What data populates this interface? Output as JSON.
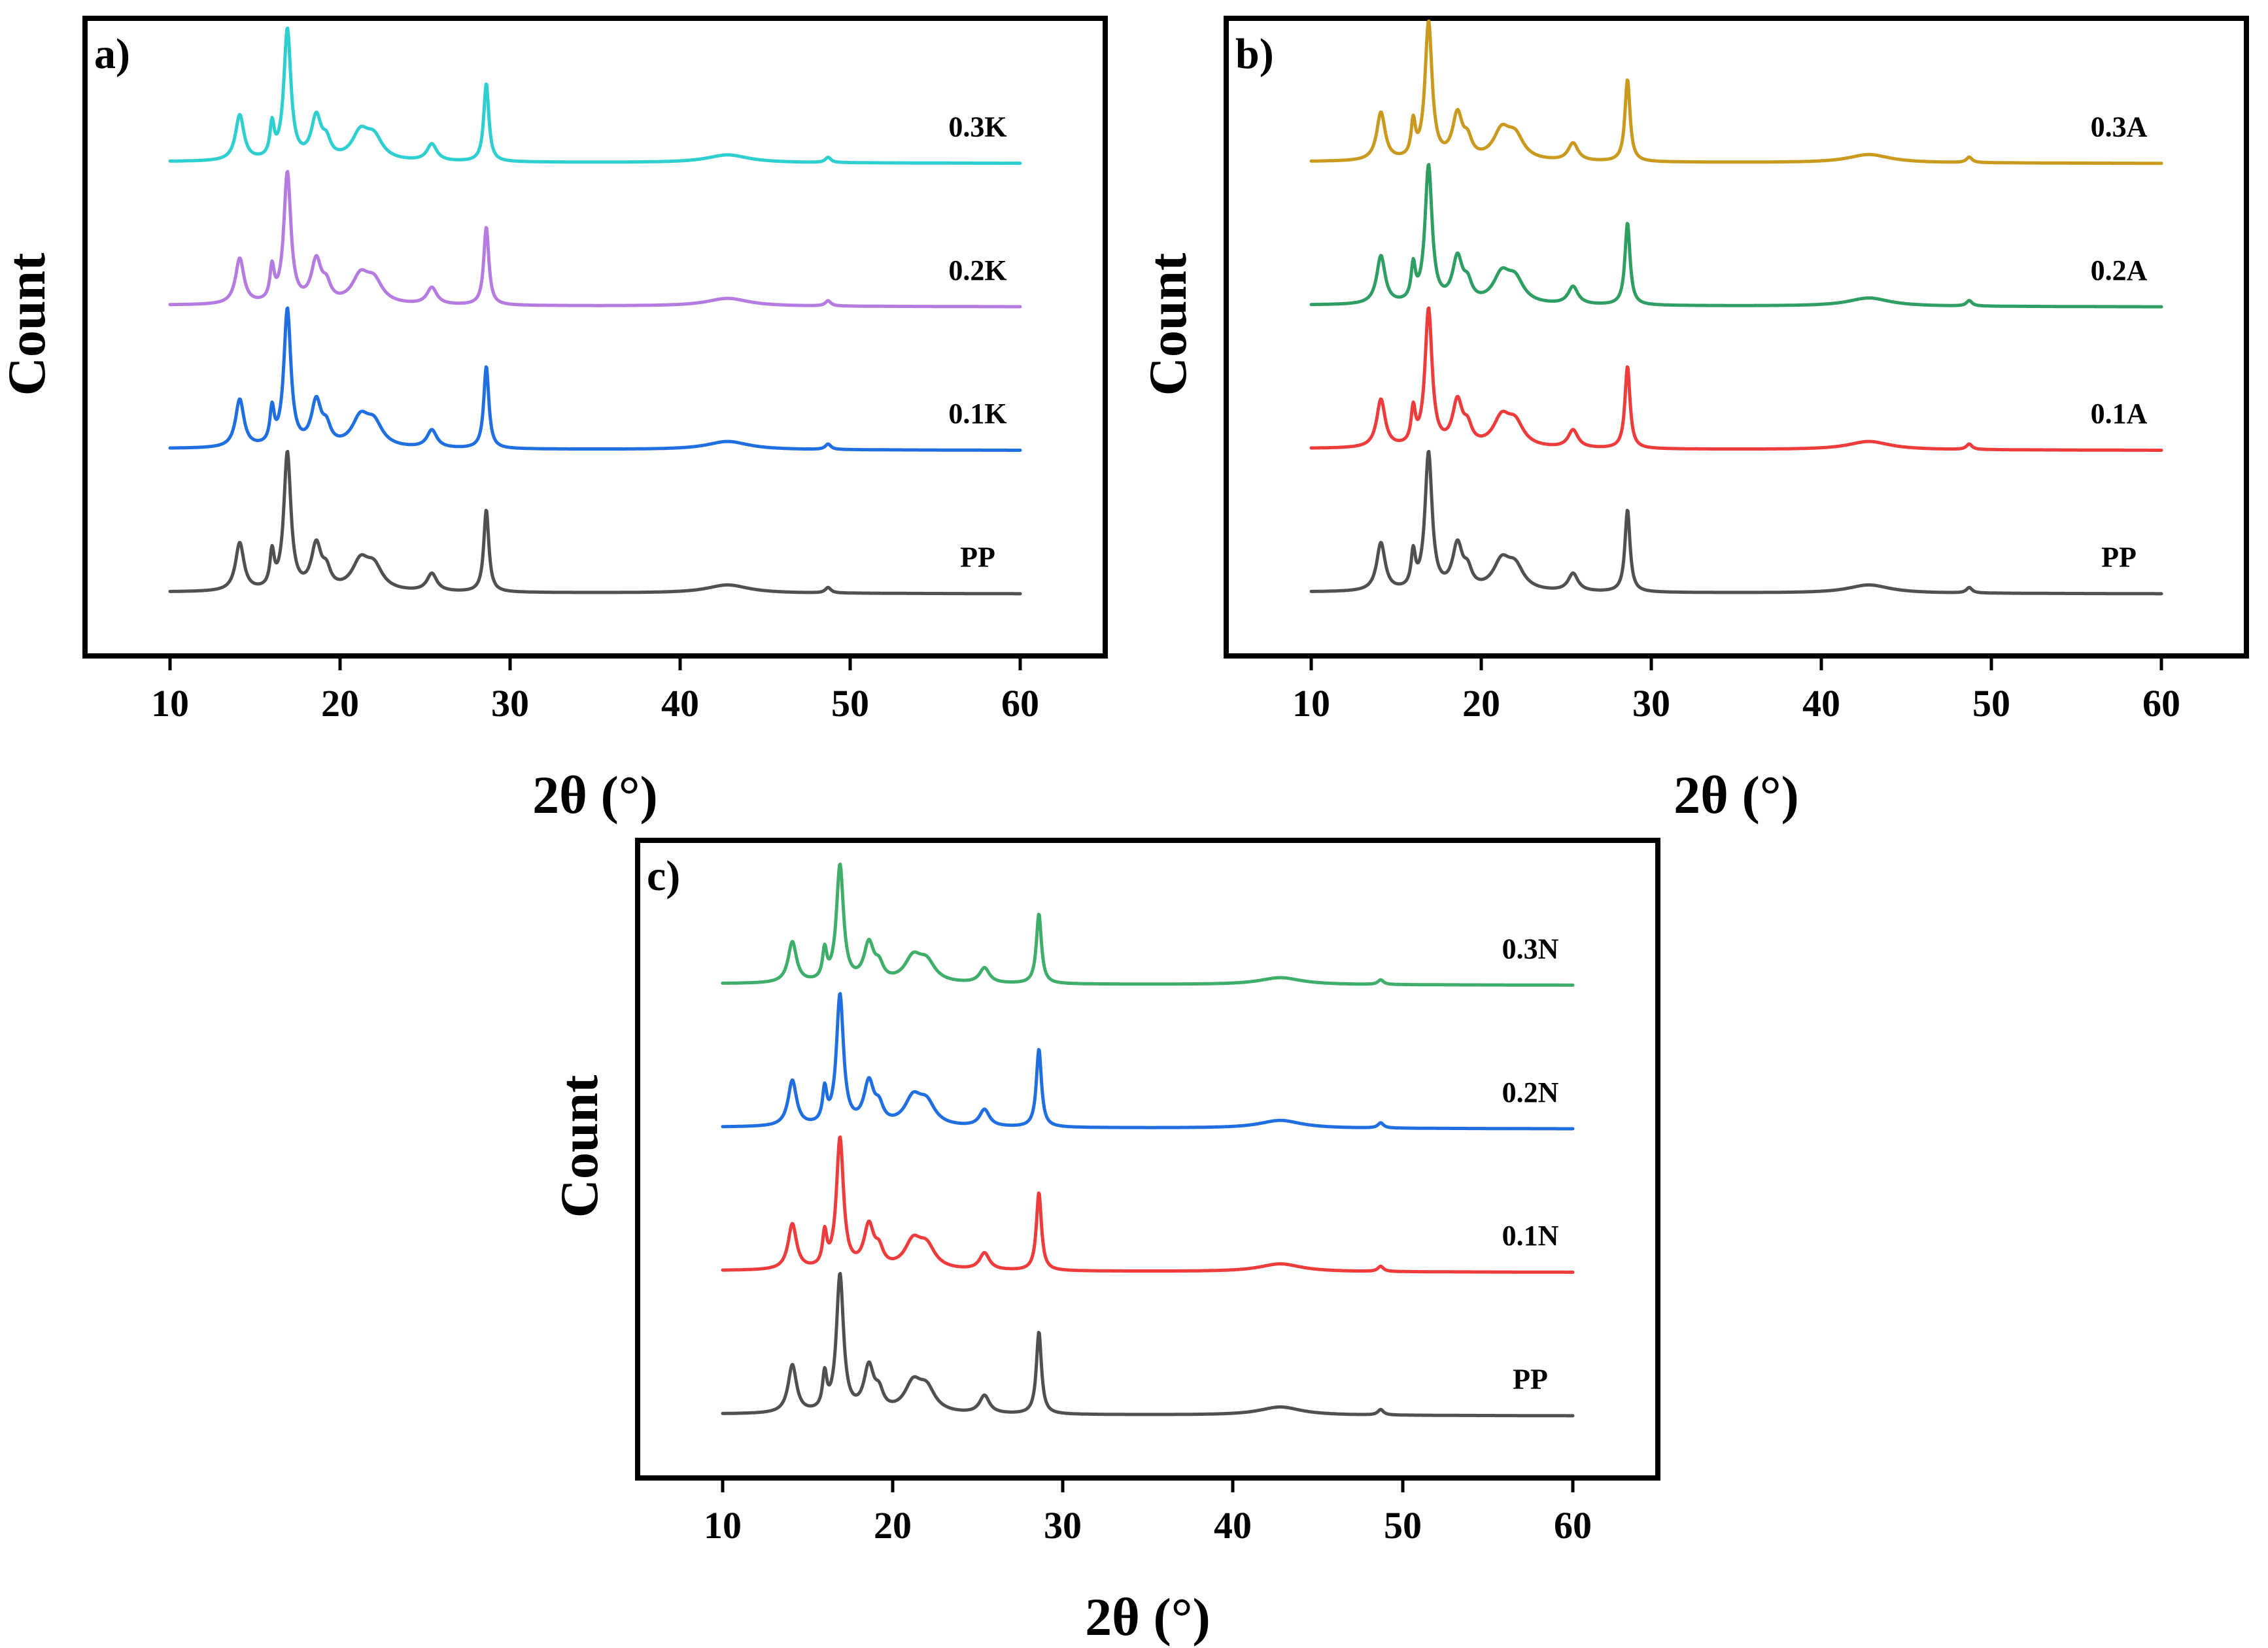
{
  "chart_data": [
    {
      "type": "line",
      "panel_label": "a)",
      "xlabel": "2θ (°)",
      "ylabel": "Count",
      "xlim": [
        5,
        65
      ],
      "xticks": [
        "10",
        "20",
        "30",
        "40",
        "50",
        "60"
      ],
      "peaks": [
        {
          "x": 14.1,
          "h": 0.35,
          "w": 0.3
        },
        {
          "x": 16.0,
          "h": 0.25,
          "w": 0.15
        },
        {
          "x": 16.9,
          "h": 1.0,
          "w": 0.25
        },
        {
          "x": 18.6,
          "h": 0.32,
          "w": 0.35
        },
        {
          "x": 19.2,
          "h": 0.12,
          "w": 0.3
        },
        {
          "x": 21.2,
          "h": 0.2,
          "w": 0.6
        },
        {
          "x": 22.0,
          "h": 0.16,
          "w": 0.6
        },
        {
          "x": 25.4,
          "h": 0.13,
          "w": 0.35
        },
        {
          "x": 28.6,
          "h": 0.6,
          "w": 0.18
        },
        {
          "x": 42.8,
          "h": 0.06,
          "w": 1.5
        },
        {
          "x": 48.7,
          "h": 0.04,
          "w": 0.2
        }
      ],
      "series": [
        {
          "name": "PP",
          "color": "#505050",
          "offset": 0,
          "scale": 1.0
        },
        {
          "name": "0.1K",
          "color": "#1f6fe0",
          "offset": 1,
          "scale": 1.0
        },
        {
          "name": "0.2K",
          "color": "#b57be0",
          "offset": 2,
          "scale": 0.95
        },
        {
          "name": "0.3K",
          "color": "#2ecfd0",
          "offset": 3,
          "scale": 0.95
        }
      ]
    },
    {
      "type": "line",
      "panel_label": "b)",
      "xlabel": "2θ (°)",
      "ylabel": "Count",
      "xlim": [
        5,
        65
      ],
      "xticks": [
        "10",
        "20",
        "30",
        "40",
        "50",
        "60"
      ],
      "peaks": [
        {
          "x": 14.1,
          "h": 0.35,
          "w": 0.3
        },
        {
          "x": 16.0,
          "h": 0.25,
          "w": 0.15
        },
        {
          "x": 16.9,
          "h": 1.0,
          "w": 0.25
        },
        {
          "x": 18.6,
          "h": 0.32,
          "w": 0.35
        },
        {
          "x": 19.2,
          "h": 0.12,
          "w": 0.3
        },
        {
          "x": 21.2,
          "h": 0.2,
          "w": 0.6
        },
        {
          "x": 22.0,
          "h": 0.16,
          "w": 0.6
        },
        {
          "x": 25.4,
          "h": 0.13,
          "w": 0.35
        },
        {
          "x": 28.6,
          "h": 0.6,
          "w": 0.18
        },
        {
          "x": 42.8,
          "h": 0.06,
          "w": 1.5
        },
        {
          "x": 48.7,
          "h": 0.04,
          "w": 0.2
        }
      ],
      "series": [
        {
          "name": "PP",
          "color": "#505050",
          "offset": 0,
          "scale": 1.0
        },
        {
          "name": "0.1A",
          "color": "#ee3b3b",
          "offset": 1,
          "scale": 1.0
        },
        {
          "name": "0.2A",
          "color": "#2e9e62",
          "offset": 2,
          "scale": 1.0
        },
        {
          "name": "0.3A",
          "color": "#c99a1e",
          "offset": 3,
          "scale": 1.0
        }
      ]
    },
    {
      "type": "line",
      "panel_label": "c)",
      "xlabel": "2θ (°)",
      "ylabel": "Count",
      "xlim": [
        5,
        65
      ],
      "xticks": [
        "10",
        "20",
        "30",
        "40",
        "50",
        "60"
      ],
      "peaks": [
        {
          "x": 14.1,
          "h": 0.35,
          "w": 0.3
        },
        {
          "x": 16.0,
          "h": 0.25,
          "w": 0.15
        },
        {
          "x": 16.9,
          "h": 1.0,
          "w": 0.25
        },
        {
          "x": 18.6,
          "h": 0.32,
          "w": 0.35
        },
        {
          "x": 19.2,
          "h": 0.12,
          "w": 0.3
        },
        {
          "x": 21.2,
          "h": 0.2,
          "w": 0.6
        },
        {
          "x": 22.0,
          "h": 0.16,
          "w": 0.6
        },
        {
          "x": 25.4,
          "h": 0.13,
          "w": 0.35
        },
        {
          "x": 28.6,
          "h": 0.6,
          "w": 0.18
        },
        {
          "x": 42.8,
          "h": 0.06,
          "w": 1.5
        },
        {
          "x": 48.7,
          "h": 0.04,
          "w": 0.2
        }
      ],
      "series": [
        {
          "name": "PP",
          "color": "#505050",
          "offset": 0,
          "scale": 1.0
        },
        {
          "name": "0.1N",
          "color": "#ee3b3b",
          "offset": 1,
          "scale": 0.95
        },
        {
          "name": "0.2N",
          "color": "#1f6fe0",
          "offset": 2,
          "scale": 0.95
        },
        {
          "name": "0.3N",
          "color": "#3fae6a",
          "offset": 3,
          "scale": 0.85
        }
      ]
    }
  ]
}
